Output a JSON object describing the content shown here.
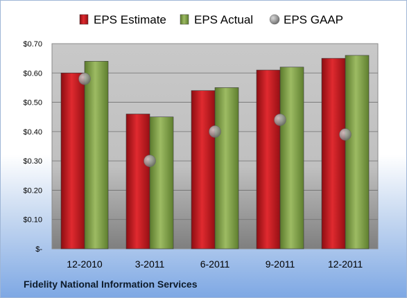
{
  "company": "Fidelity National Information Services",
  "chart_data": {
    "type": "bar",
    "categories": [
      "12-2010",
      "3-2011",
      "6-2011",
      "9-2011",
      "12-2011"
    ],
    "series": [
      {
        "name": "EPS Estimate",
        "kind": "bar",
        "color": "#c8141c",
        "values": [
          0.6,
          0.46,
          0.54,
          0.61,
          0.65
        ]
      },
      {
        "name": "EPS Actual",
        "kind": "bar",
        "color": "#7fa24a",
        "values": [
          0.64,
          0.45,
          0.55,
          0.62,
          0.66
        ]
      },
      {
        "name": "EPS GAAP",
        "kind": "marker",
        "color": "#a9a9a9",
        "values": [
          0.58,
          0.3,
          0.4,
          0.44,
          0.39
        ]
      }
    ],
    "yticks": [
      {
        "value": 0.7,
        "label": "$0.70"
      },
      {
        "value": 0.6,
        "label": "$0.60"
      },
      {
        "value": 0.5,
        "label": "$0.50"
      },
      {
        "value": 0.4,
        "label": "$0.40"
      },
      {
        "value": 0.3,
        "label": "$0.30"
      },
      {
        "value": 0.2,
        "label": "$0.20"
      },
      {
        "value": 0.1,
        "label": "$0.10"
      },
      {
        "value": 0.0,
        "label": "$-"
      }
    ],
    "ylim": [
      0,
      0.7
    ],
    "grid": true,
    "legend_position": "top"
  }
}
